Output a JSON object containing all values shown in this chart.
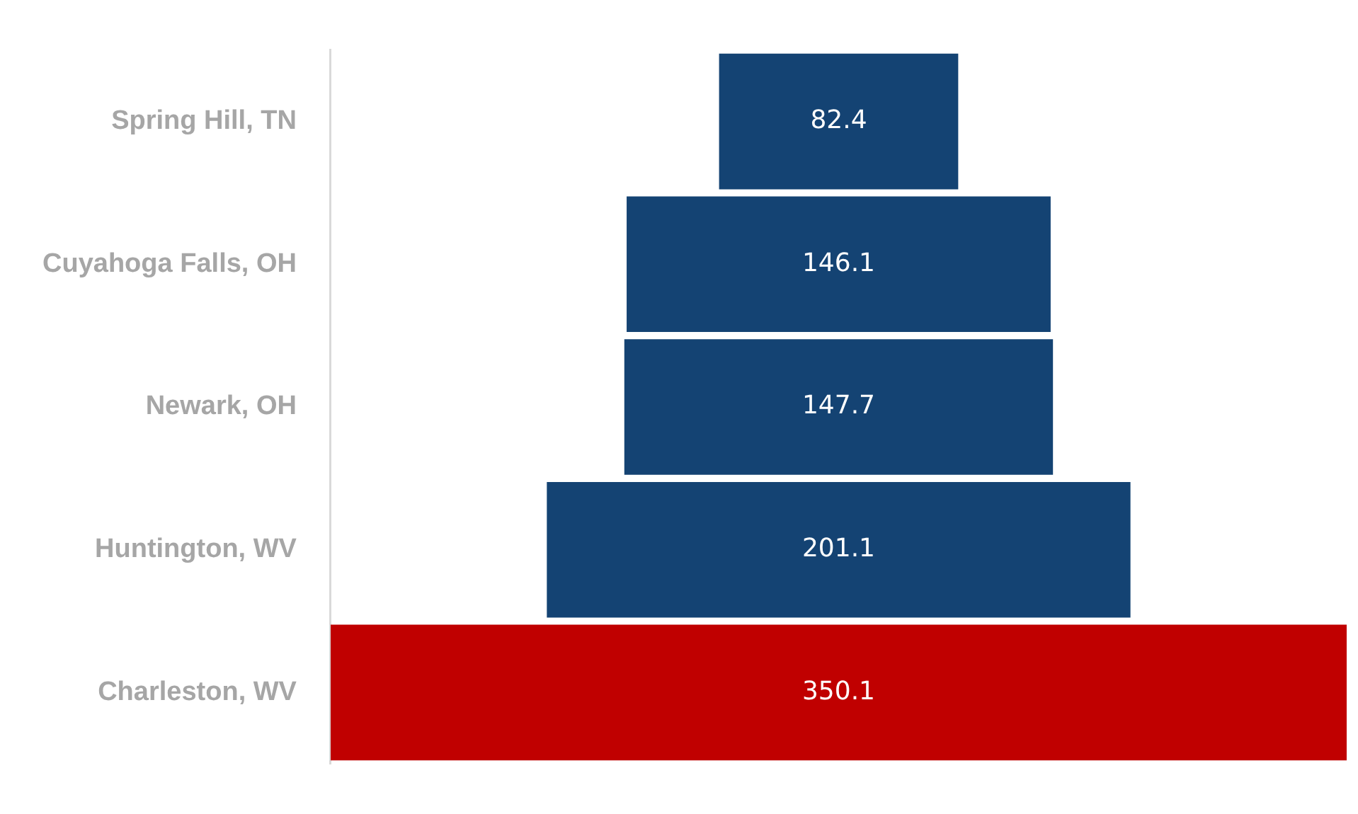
{
  "chart_data": {
    "type": "other",
    "categories": [
      "Spring Hill, TN",
      "Cuyahoga Falls, OH",
      "Newark, OH",
      "Huntington, WV",
      "Charleston, WV"
    ],
    "values": [
      82.4,
      146.1,
      147.7,
      201.1,
      350.1
    ],
    "colors": [
      "#144373",
      "#144373",
      "#144373",
      "#144373",
      "#c00000"
    ],
    "data_labels": true,
    "legend": false
  }
}
